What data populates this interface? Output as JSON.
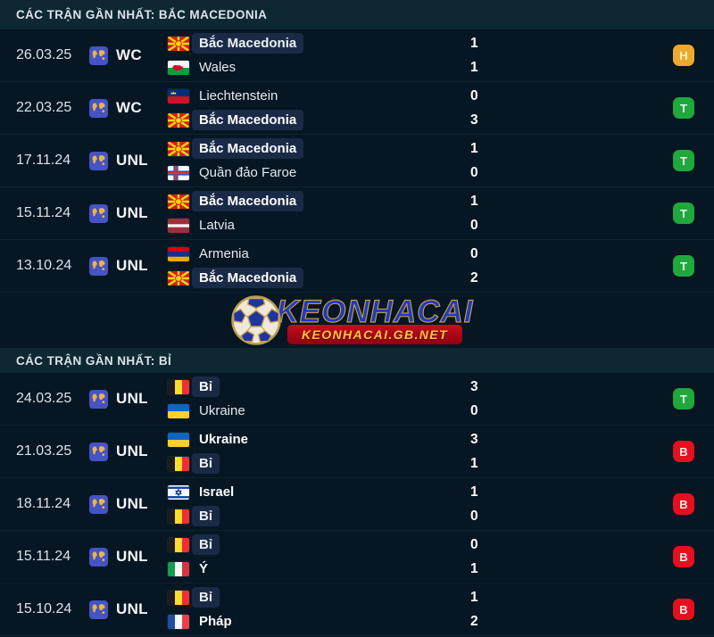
{
  "accent_colors": {
    "win": "#1fa83c",
    "draw": "#eca92c",
    "loss": "#e60f1e",
    "highlight_bg": "#1a2a46"
  },
  "logo": {
    "ball_icon": "soccer-ball-icon",
    "wordmark": "KEONHACAI",
    "domain": "KEONHACAI.GB.NET"
  },
  "sections": [
    {
      "title": "CÁC TRẬN GẦN NHẤT: BẮC MACEDONIA",
      "rows": [
        {
          "date": "26.03.25",
          "competition": "WC",
          "competition_icon": "world-map-icon",
          "result": "H",
          "teams": [
            {
              "flag": "north-macedonia",
              "name": "Bắc Macedonia",
              "score": "1",
              "highlight": true,
              "bold": false
            },
            {
              "flag": "wales",
              "name": "Wales",
              "score": "1",
              "highlight": false,
              "bold": false
            }
          ]
        },
        {
          "date": "22.03.25",
          "competition": "WC",
          "competition_icon": "world-map-icon",
          "result": "T",
          "teams": [
            {
              "flag": "liechtenstein",
              "name": "Liechtenstein",
              "score": "0",
              "highlight": false,
              "bold": false
            },
            {
              "flag": "north-macedonia",
              "name": "Bắc Macedonia",
              "score": "3",
              "highlight": true,
              "bold": true
            }
          ]
        },
        {
          "date": "17.11.24",
          "competition": "UNL",
          "competition_icon": "world-map-icon",
          "result": "T",
          "teams": [
            {
              "flag": "north-macedonia",
              "name": "Bắc Macedonia",
              "score": "1",
              "highlight": true,
              "bold": true
            },
            {
              "flag": "faroe-islands",
              "name": "Quần đảo Faroe",
              "score": "0",
              "highlight": false,
              "bold": false
            }
          ]
        },
        {
          "date": "15.11.24",
          "competition": "UNL",
          "competition_icon": "world-map-icon",
          "result": "T",
          "teams": [
            {
              "flag": "north-macedonia",
              "name": "Bắc Macedonia",
              "score": "1",
              "highlight": true,
              "bold": true
            },
            {
              "flag": "latvia",
              "name": "Latvia",
              "score": "0",
              "highlight": false,
              "bold": false
            }
          ]
        },
        {
          "date": "13.10.24",
          "competition": "UNL",
          "competition_icon": "world-map-icon",
          "result": "T",
          "teams": [
            {
              "flag": "armenia",
              "name": "Armenia",
              "score": "0",
              "highlight": false,
              "bold": false
            },
            {
              "flag": "north-macedonia",
              "name": "Bắc Macedonia",
              "score": "2",
              "highlight": true,
              "bold": true
            }
          ]
        }
      ]
    },
    {
      "title": "CÁC TRẬN GẦN NHẤT: BỈ",
      "rows": [
        {
          "date": "24.03.25",
          "competition": "UNL",
          "competition_icon": "world-map-icon",
          "result": "T",
          "teams": [
            {
              "flag": "belgium",
              "name": "Bỉ",
              "score": "3",
              "highlight": true,
              "bold": true
            },
            {
              "flag": "ukraine",
              "name": "Ukraine",
              "score": "0",
              "highlight": false,
              "bold": false
            }
          ]
        },
        {
          "date": "21.03.25",
          "competition": "UNL",
          "competition_icon": "world-map-icon",
          "result": "B",
          "teams": [
            {
              "flag": "ukraine",
              "name": "Ukraine",
              "score": "3",
              "highlight": false,
              "bold": true
            },
            {
              "flag": "belgium",
              "name": "Bỉ",
              "score": "1",
              "highlight": true,
              "bold": false
            }
          ]
        },
        {
          "date": "18.11.24",
          "competition": "UNL",
          "competition_icon": "world-map-icon",
          "result": "B",
          "teams": [
            {
              "flag": "israel",
              "name": "Israel",
              "score": "1",
              "highlight": false,
              "bold": true
            },
            {
              "flag": "belgium",
              "name": "Bỉ",
              "score": "0",
              "highlight": true,
              "bold": false
            }
          ]
        },
        {
          "date": "15.11.24",
          "competition": "UNL",
          "competition_icon": "world-map-icon",
          "result": "B",
          "teams": [
            {
              "flag": "belgium",
              "name": "Bỉ",
              "score": "0",
              "highlight": true,
              "bold": false
            },
            {
              "flag": "italy",
              "name": "Ý",
              "score": "1",
              "highlight": false,
              "bold": true
            }
          ]
        },
        {
          "date": "15.10.24",
          "competition": "UNL",
          "competition_icon": "world-map-icon",
          "result": "B",
          "teams": [
            {
              "flag": "belgium",
              "name": "Bỉ",
              "score": "1",
              "highlight": true,
              "bold": false
            },
            {
              "flag": "france",
              "name": "Pháp",
              "score": "2",
              "highlight": false,
              "bold": true
            }
          ]
        }
      ]
    }
  ]
}
